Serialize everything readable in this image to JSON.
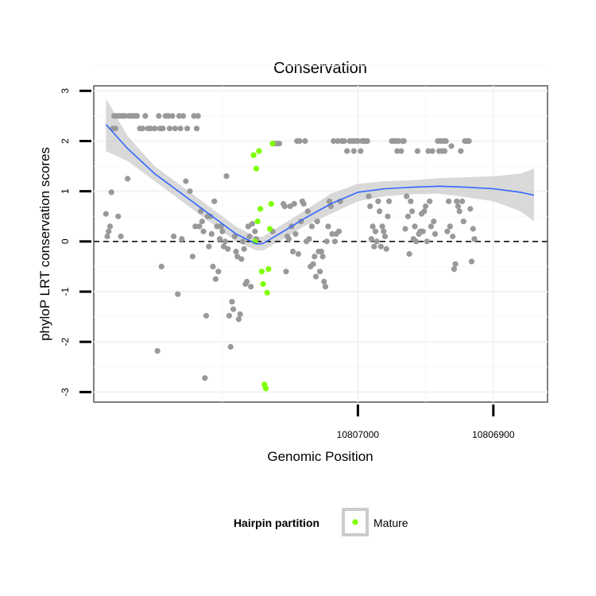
{
  "chart_data": {
    "type": "scatter",
    "title": "Conservation",
    "xlabel": "Genomic Position",
    "ylabel": "phyloP LRT conservation scores",
    "x_reversed": true,
    "xlim": [
      10807195,
      10806860
    ],
    "ylim": [
      -3.2,
      3.1
    ],
    "x_ticks": [
      10807000,
      10806900
    ],
    "x_tick_labels": [
      "10807000",
      "10806900"
    ],
    "y_ticks": [
      -3,
      -2,
      -1,
      0,
      1,
      2,
      3
    ],
    "y_tick_labels": [
      "-3",
      "-2",
      "-1",
      "0",
      "1",
      "2",
      "3"
    ],
    "grid": true,
    "reference_line": {
      "y": 0,
      "style": "dashed"
    },
    "legend": {
      "title": "Hairpin partition",
      "position": "bottom",
      "entries": [
        {
          "label": "Mature",
          "color": "#7fff00"
        }
      ]
    },
    "colors": {
      "other": "#999999",
      "mature": "#7fff00",
      "smooth": "#3366ff",
      "band": "#cccccc"
    },
    "series": [
      {
        "group": "other",
        "color": "#999999",
        "points": [
          [
            10807186,
            0.55
          ],
          [
            10807185,
            0.1
          ],
          [
            10807184,
            0.2
          ],
          [
            10807183,
            0.3
          ],
          [
            10807182,
            0.98
          ],
          [
            10807181,
            2.25
          ],
          [
            10807180,
            2.5
          ],
          [
            10807179,
            2.25
          ],
          [
            10807177,
            0.5
          ],
          [
            10807178,
            2.5
          ],
          [
            10807176,
            2.5
          ],
          [
            10807175,
            0.1
          ],
          [
            10807174,
            2.5
          ],
          [
            10807172,
            2.5
          ],
          [
            10807170,
            1.25
          ],
          [
            10807169,
            2.5
          ],
          [
            10807167,
            2.5
          ],
          [
            10807165,
            2.5
          ],
          [
            10807163,
            2.5
          ],
          [
            10807161,
            2.25
          ],
          [
            10807159,
            2.25
          ],
          [
            10807157,
            2.5
          ],
          [
            10807155,
            2.25
          ],
          [
            10807153,
            2.25
          ],
          [
            10807150,
            2.25
          ],
          [
            10807148,
            -2.18
          ],
          [
            10807147,
            2.5
          ],
          [
            10807146,
            2.25
          ],
          [
            10807145,
            -0.5
          ],
          [
            10807144,
            2.25
          ],
          [
            10807142,
            2.5
          ],
          [
            10807140,
            2.5
          ],
          [
            10807139,
            2.25
          ],
          [
            10807137,
            2.5
          ],
          [
            10807136,
            0.1
          ],
          [
            10807135,
            2.25
          ],
          [
            10807133,
            -1.05
          ],
          [
            10807132,
            2.5
          ],
          [
            10807131,
            2.25
          ],
          [
            10807130,
            0.05
          ],
          [
            10807129,
            2.5
          ],
          [
            10807127,
            1.2
          ],
          [
            10807126,
            2.25
          ],
          [
            10807124,
            1.0
          ],
          [
            10807122,
            -0.3
          ],
          [
            10807121,
            2.5
          ],
          [
            10807120,
            0.3
          ],
          [
            10807119,
            2.25
          ],
          [
            10807118,
            2.5
          ],
          [
            10807117,
            0.3
          ],
          [
            10807116,
            0.6
          ],
          [
            10807115,
            0.4
          ],
          [
            10807114,
            0.2
          ],
          [
            10807113,
            -2.72
          ],
          [
            10807112,
            -1.48
          ],
          [
            10807111,
            0.5
          ],
          [
            10807110,
            -0.1
          ],
          [
            10807109,
            0.5
          ],
          [
            10807108,
            0.15
          ],
          [
            10807107,
            -0.5
          ],
          [
            10807106,
            0.8
          ],
          [
            10807105,
            -0.75
          ],
          [
            10807104,
            0.3
          ],
          [
            10807103,
            -0.6
          ],
          [
            10807102,
            0.05
          ],
          [
            10807101,
            0.3
          ],
          [
            10807100,
            0.2
          ],
          [
            10807099,
            -0.1
          ],
          [
            10807098,
            0.0
          ],
          [
            10807097,
            1.3
          ],
          [
            10807096,
            -0.15
          ],
          [
            10807095,
            -1.48
          ],
          [
            10807094,
            -2.1
          ],
          [
            10807093,
            -1.2
          ],
          [
            10807092,
            -1.35
          ],
          [
            10807091,
            0.1
          ],
          [
            10807090,
            -0.2
          ],
          [
            10807089,
            -0.3
          ],
          [
            10807088,
            -1.55
          ],
          [
            10807087,
            -1.45
          ],
          [
            10807086,
            -0.35
          ],
          [
            10807085,
            0.0
          ],
          [
            10807084,
            -0.15
          ],
          [
            10807083,
            -0.85
          ],
          [
            10807082,
            -0.8
          ],
          [
            10807081,
            0.3
          ],
          [
            10807080,
            0.1
          ],
          [
            10807079,
            -0.9
          ],
          [
            10807078,
            0.35
          ],
          [
            10807077,
            1.72
          ],
          [
            10807076,
            0.2
          ],
          [
            10807075,
            0.05
          ],
          [
            10807062,
            1.95
          ],
          [
            10807060,
            1.95
          ],
          [
            10807058,
            1.95
          ],
          [
            10807063,
            0.2
          ],
          [
            10807055,
            0.75
          ],
          [
            10807054,
            0.7
          ],
          [
            10807053,
            -0.6
          ],
          [
            10807052,
            0.1
          ],
          [
            10807051,
            0.05
          ],
          [
            10807050,
            0.7
          ],
          [
            10807049,
            0.3
          ],
          [
            10807048,
            -0.2
          ],
          [
            10807047,
            0.75
          ],
          [
            10807046,
            0.15
          ],
          [
            10807045,
            2.0
          ],
          [
            10807044,
            -0.25
          ],
          [
            10807043,
            2.0
          ],
          [
            10807042,
            0.4
          ],
          [
            10807041,
            0.8
          ],
          [
            10807040,
            0.75
          ],
          [
            10807039,
            2.0
          ],
          [
            10807038,
            0.0
          ],
          [
            10807037,
            0.6
          ],
          [
            10807036,
            0.05
          ],
          [
            10807035,
            -0.5
          ],
          [
            10807034,
            0.3
          ],
          [
            10807033,
            -0.45
          ],
          [
            10807032,
            -0.3
          ],
          [
            10807031,
            -0.7
          ],
          [
            10807030,
            0.4
          ],
          [
            10807029,
            -0.2
          ],
          [
            10807028,
            -0.6
          ],
          [
            10807027,
            -0.2
          ],
          [
            10807026,
            -0.3
          ],
          [
            10807025,
            -0.8
          ],
          [
            10807024,
            -0.9
          ],
          [
            10807023,
            0.0
          ],
          [
            10807022,
            0.3
          ],
          [
            10807021,
            0.8
          ],
          [
            10807020,
            0.7
          ],
          [
            10807019,
            0.15
          ],
          [
            10807018,
            2.0
          ],
          [
            10807017,
            0.0
          ],
          [
            10807016,
            0.15
          ],
          [
            10807015,
            2.0
          ],
          [
            10807014,
            0.2
          ],
          [
            10807013,
            0.8
          ],
          [
            10807012,
            2.0
          ],
          [
            10807011,
            2.0
          ],
          [
            10807010,
            2.0
          ],
          [
            10807008,
            1.8
          ],
          [
            10807006,
            2.0
          ],
          [
            10807004,
            2.0
          ],
          [
            10807003,
            1.8
          ],
          [
            10807002,
            2.0
          ],
          [
            10807000,
            2.0
          ],
          [
            10806998,
            1.8
          ],
          [
            10806997,
            2.0
          ],
          [
            10806996,
            2.0
          ],
          [
            10806995,
            2.0
          ],
          [
            10806994,
            2.0
          ],
          [
            10806993,
            2.0
          ],
          [
            10806992,
            0.9
          ],
          [
            10806991,
            0.7
          ],
          [
            10806990,
            0.05
          ],
          [
            10806989,
            0.3
          ],
          [
            10806988,
            -0.1
          ],
          [
            10806987,
            0.2
          ],
          [
            10806986,
            0.0
          ],
          [
            10806985,
            0.8
          ],
          [
            10806984,
            0.6
          ],
          [
            10806983,
            -0.1
          ],
          [
            10806982,
            0.3
          ],
          [
            10806981,
            0.2
          ],
          [
            10806980,
            0.1
          ],
          [
            10806979,
            -0.15
          ],
          [
            10806978,
            0.5
          ],
          [
            10806977,
            0.8
          ],
          [
            10806975,
            2.0
          ],
          [
            10806974,
            2.0
          ],
          [
            10806972,
            2.0
          ],
          [
            10806971,
            1.8
          ],
          [
            10806970,
            2.0
          ],
          [
            10806968,
            1.8
          ],
          [
            10806967,
            2.0
          ],
          [
            10806966,
            2.0
          ],
          [
            10806965,
            0.25
          ],
          [
            10806964,
            0.9
          ],
          [
            10806963,
            0.5
          ],
          [
            10806962,
            -0.25
          ],
          [
            10806961,
            0.8
          ],
          [
            10806960,
            0.6
          ],
          [
            10806959,
            0.05
          ],
          [
            10806958,
            0.3
          ],
          [
            10806957,
            0.0
          ],
          [
            10806956,
            1.8
          ],
          [
            10806955,
            0.15
          ],
          [
            10806954,
            0.2
          ],
          [
            10806953,
            0.55
          ],
          [
            10806952,
            0.2
          ],
          [
            10806951,
            0.6
          ],
          [
            10806950,
            0.7
          ],
          [
            10806949,
            0.0
          ],
          [
            10806948,
            1.8
          ],
          [
            10806947,
            0.8
          ],
          [
            10806946,
            0.3
          ],
          [
            10806945,
            1.8
          ],
          [
            10806944,
            0.4
          ],
          [
            10806943,
            0.15
          ],
          [
            10806941,
            2.0
          ],
          [
            10806940,
            1.8
          ],
          [
            10806939,
            2.0
          ],
          [
            10806938,
            1.8
          ],
          [
            10806937,
            2.0
          ],
          [
            10806936,
            1.8
          ],
          [
            10806935,
            2.0
          ],
          [
            10806934,
            0.2
          ],
          [
            10806933,
            0.8
          ],
          [
            10806932,
            0.3
          ],
          [
            10806931,
            1.9
          ],
          [
            10806930,
            0.1
          ],
          [
            10806929,
            -0.55
          ],
          [
            10806928,
            -0.45
          ],
          [
            10806927,
            0.8
          ],
          [
            10806926,
            0.7
          ],
          [
            10806925,
            0.6
          ],
          [
            10806924,
            1.8
          ],
          [
            10806923,
            0.8
          ],
          [
            10806922,
            0.4
          ],
          [
            10806921,
            2.0
          ],
          [
            10806920,
            2.0
          ],
          [
            10806919,
            2.0
          ],
          [
            10806918,
            2.0
          ],
          [
            10806917,
            0.65
          ],
          [
            10806916,
            -0.4
          ],
          [
            10806915,
            0.25
          ],
          [
            10806914,
            0.05
          ]
        ]
      },
      {
        "group": "mature",
        "name": "Mature",
        "color": "#7fff00",
        "points": [
          [
            10807077,
            1.72
          ],
          [
            10807075,
            1.45
          ],
          [
            10807073,
            1.8
          ],
          [
            10807072,
            0.65
          ],
          [
            10807074,
            0.4
          ],
          [
            10807076,
            0.0
          ],
          [
            10807071,
            -0.6
          ],
          [
            10807070,
            -0.85
          ],
          [
            10807069,
            -2.85
          ],
          [
            10807068,
            -2.93
          ],
          [
            10807067,
            -1.02
          ],
          [
            10807066,
            -0.55
          ],
          [
            10807065,
            0.25
          ],
          [
            10807064,
            0.75
          ],
          [
            10807063,
            1.95
          ]
        ]
      }
    ],
    "smooth": {
      "x": [
        10807186,
        10807170,
        10807150,
        10807130,
        10807110,
        10807090,
        10807075,
        10807070,
        10807055,
        10807040,
        10807020,
        10807000,
        10806980,
        10806960,
        10806940,
        10806920,
        10806900,
        10806880,
        10806870
      ],
      "y": [
        2.33,
        1.85,
        1.35,
        0.95,
        0.55,
        0.15,
        -0.05,
        -0.04,
        0.2,
        0.45,
        0.75,
        0.98,
        1.05,
        1.08,
        1.1,
        1.08,
        1.05,
        0.98,
        0.92
      ],
      "upper": [
        2.85,
        2.1,
        1.5,
        1.1,
        0.7,
        0.3,
        0.08,
        0.1,
        0.35,
        0.6,
        0.95,
        1.15,
        1.2,
        1.22,
        1.26,
        1.28,
        1.3,
        1.35,
        1.45
      ],
      "lower": [
        1.8,
        1.6,
        1.2,
        0.8,
        0.4,
        0.0,
        -0.18,
        -0.18,
        0.05,
        0.3,
        0.55,
        0.8,
        0.9,
        0.94,
        0.95,
        0.88,
        0.8,
        0.6,
        0.4
      ]
    }
  }
}
